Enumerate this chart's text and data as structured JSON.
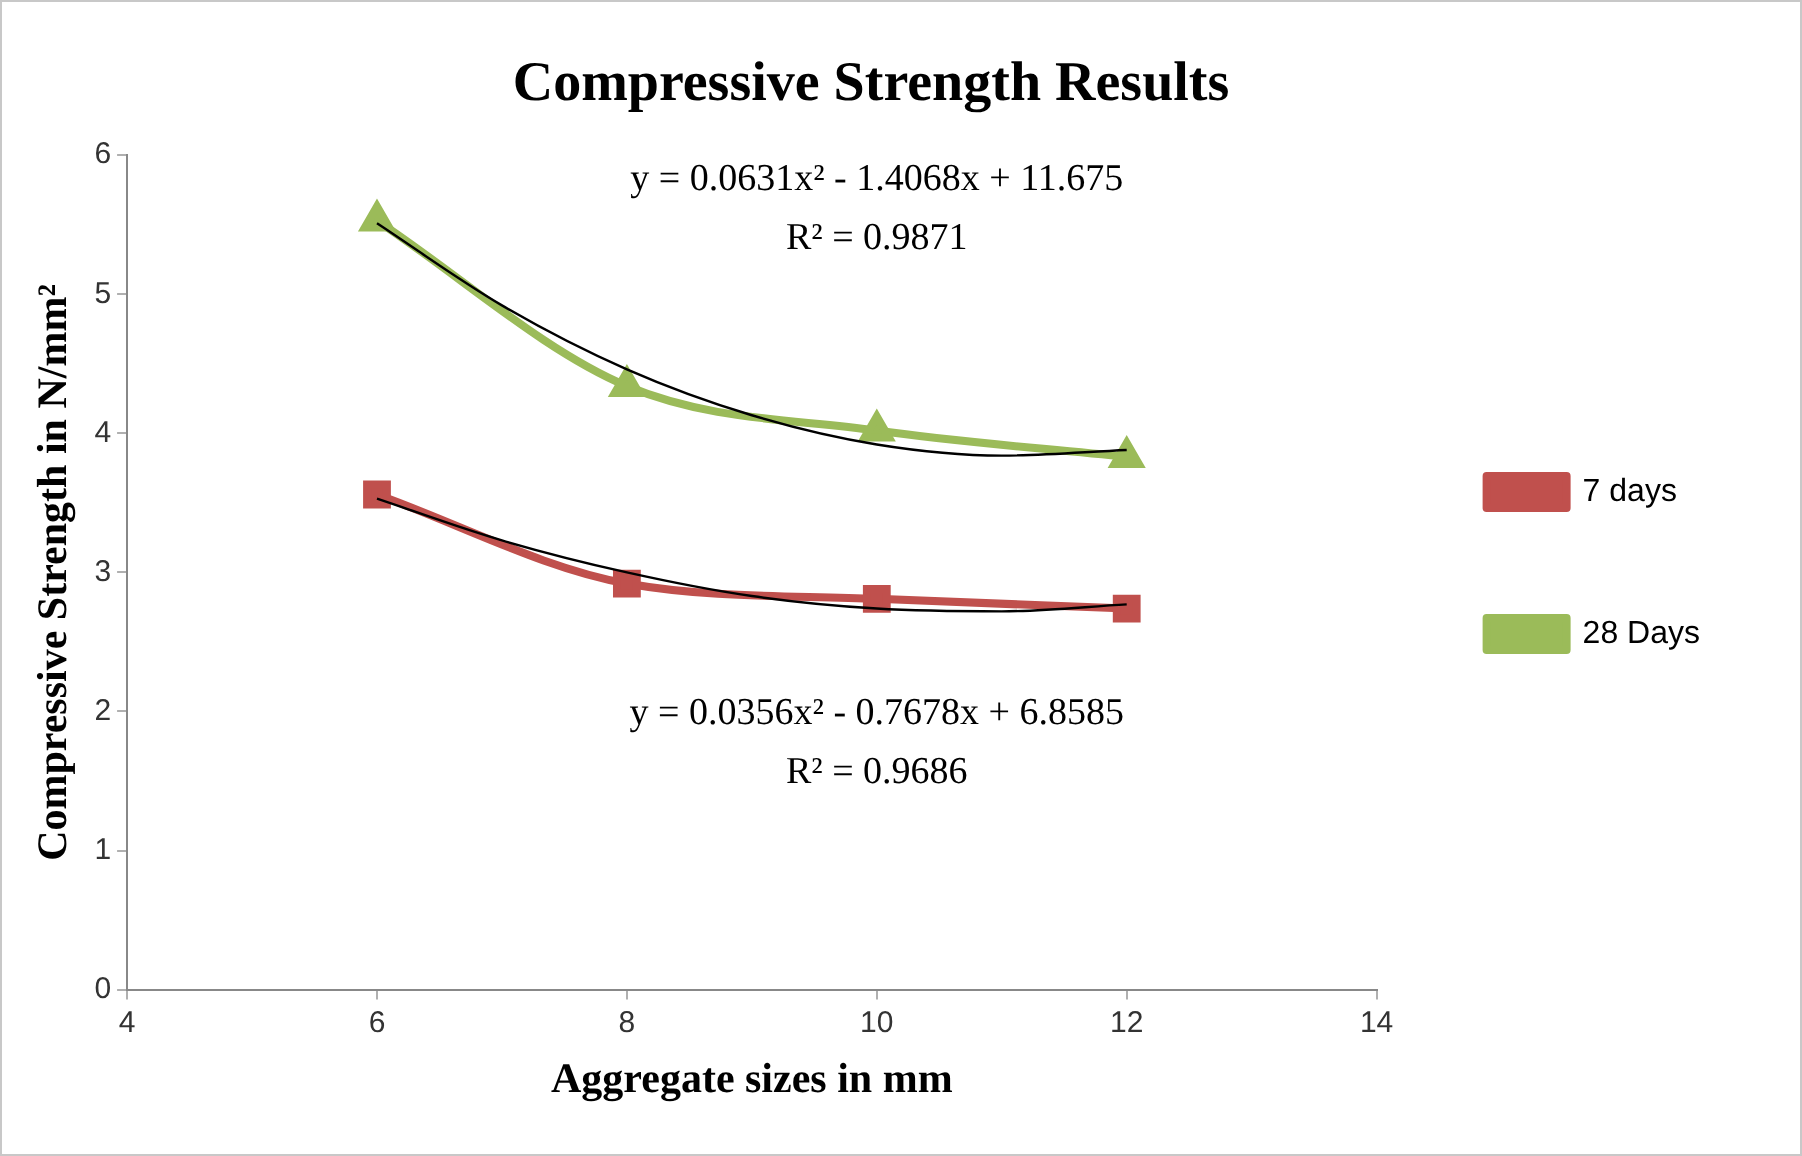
{
  "chart_data": {
    "type": "line",
    "title": "Compressive Strength Results",
    "xlabel": "Aggregate sizes in mm",
    "ylabel": "Compressive Strength in N/mm²",
    "x": [
      6,
      8,
      10,
      12
    ],
    "series": [
      {
        "name": "7 days",
        "color": "#c0504d",
        "marker": "square",
        "values": [
          3.56,
          2.92,
          2.81,
          2.74
        ]
      },
      {
        "name": "28 Days",
        "color": "#9bbb59",
        "marker": "triangle",
        "values": [
          5.53,
          4.34,
          4.02,
          3.83
        ]
      },
      {
        "type": "line",
        "color": "#000000",
        "marker": "none",
        "x": [
          6,
          7,
          8,
          9,
          10,
          11,
          12
        ],
        "values": [
          3.53,
          3.23,
          3.0,
          2.83,
          2.74,
          2.72,
          2.77
        ]
      },
      {
        "type": "line",
        "color": "#000000",
        "marker": "none",
        "x": [
          6,
          7,
          8,
          9,
          10,
          11,
          12
        ],
        "values": [
          5.51,
          4.92,
          4.46,
          4.13,
          3.92,
          3.84,
          3.88
        ]
      }
    ],
    "xlim": [
      4,
      14
    ],
    "xticks": [
      4,
      6,
      8,
      10,
      12,
      14
    ],
    "ylim": [
      0,
      6
    ],
    "yticks": [
      0,
      1,
      2,
      3,
      4,
      5,
      6
    ],
    "legend": "right",
    "grid": false,
    "annotations": [
      "y = 0.0631x² - 1.4068x + 11.675",
      "R² = 0.9871",
      "y = 0.0356x² - 0.7678x + 6.8585",
      "R² = 0.9686"
    ]
  }
}
